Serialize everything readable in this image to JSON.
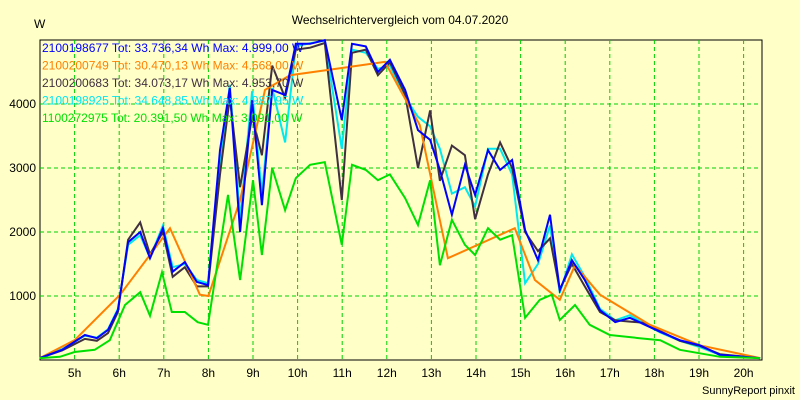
{
  "chart_data": {
    "type": "line",
    "title": "Wechselrichtervergleich vom 04.07.2020",
    "ylabel": "W",
    "xlabel": "",
    "footer": "SunnyReport pinxit",
    "xlim": [
      4.22,
      20.5
    ],
    "ylim": [
      0,
      5000
    ],
    "grid": true,
    "legend_position": "top-left",
    "yticks": [
      1000,
      2000,
      3000,
      4000
    ],
    "xticks": [
      {
        "v": 5,
        "label": "5h"
      },
      {
        "v": 6,
        "label": "6h"
      },
      {
        "v": 7,
        "label": "7h"
      },
      {
        "v": 8,
        "label": "8h"
      },
      {
        "v": 9,
        "label": "9h"
      },
      {
        "v": 10,
        "label": "10h"
      },
      {
        "v": 11,
        "label": "11h"
      },
      {
        "v": 12,
        "label": "12h"
      },
      {
        "v": 13,
        "label": "13h"
      },
      {
        "v": 14,
        "label": "14h"
      },
      {
        "v": 15,
        "label": "15h"
      },
      {
        "v": 16,
        "label": "16h"
      },
      {
        "v": 17,
        "label": "17h"
      },
      {
        "v": 18,
        "label": "18h"
      },
      {
        "v": 19,
        "label": "19h"
      },
      {
        "v": 20,
        "label": "20h"
      }
    ],
    "series": [
      {
        "name": "2100198925",
        "color": "#00e8f0",
        "legend": "2100198925 Tot: 34.648,85 Wh Max: 4.987,95 W",
        "points": [
          [
            4.22,
            30
          ],
          [
            4.72,
            170
          ],
          [
            5.23,
            380
          ],
          [
            5.5,
            350
          ],
          [
            5.75,
            480
          ],
          [
            5.97,
            800
          ],
          [
            6.2,
            1800
          ],
          [
            6.47,
            1950
          ],
          [
            6.69,
            1600
          ],
          [
            6.98,
            2100
          ],
          [
            7.2,
            1450
          ],
          [
            7.47,
            1500
          ],
          [
            7.74,
            1250
          ],
          [
            7.99,
            1200
          ],
          [
            8.26,
            3000
          ],
          [
            8.48,
            4300
          ],
          [
            8.71,
            2200
          ],
          [
            8.98,
            4200
          ],
          [
            9.2,
            2600
          ],
          [
            9.43,
            4250
          ],
          [
            9.72,
            3400
          ],
          [
            9.96,
            4900
          ],
          [
            10.28,
            4950
          ],
          [
            10.61,
            4990
          ],
          [
            10.99,
            3300
          ],
          [
            11.22,
            4850
          ],
          [
            11.53,
            4800
          ],
          [
            11.8,
            4550
          ],
          [
            12.07,
            4600
          ],
          [
            12.41,
            4100
          ],
          [
            12.7,
            3800
          ],
          [
            12.97,
            3650
          ],
          [
            13.19,
            3300
          ],
          [
            13.46,
            2600
          ],
          [
            13.75,
            2700
          ],
          [
            13.98,
            2400
          ],
          [
            14.27,
            3300
          ],
          [
            14.54,
            3300
          ],
          [
            14.81,
            2900
          ],
          [
            15.1,
            1200
          ],
          [
            15.39,
            1500
          ],
          [
            15.66,
            2100
          ],
          [
            15.88,
            1050
          ],
          [
            16.15,
            1650
          ],
          [
            16.44,
            1300
          ],
          [
            16.78,
            800
          ],
          [
            17.12,
            620
          ],
          [
            17.45,
            700
          ],
          [
            17.79,
            560
          ],
          [
            18.13,
            430
          ],
          [
            18.57,
            300
          ],
          [
            19.02,
            200
          ],
          [
            19.47,
            80
          ],
          [
            20.37,
            30
          ]
        ]
      },
      {
        "name": "2100200683",
        "color": "#403040",
        "legend": "2100200683 Tot: 34.073,17 Wh Max: 4.953,70 W",
        "points": [
          [
            4.22,
            30
          ],
          [
            4.72,
            150
          ],
          [
            5.23,
            330
          ],
          [
            5.5,
            300
          ],
          [
            5.75,
            420
          ],
          [
            5.97,
            750
          ],
          [
            6.2,
            1880
          ],
          [
            6.47,
            2150
          ],
          [
            6.69,
            1650
          ],
          [
            6.98,
            2000
          ],
          [
            7.2,
            1300
          ],
          [
            7.47,
            1450
          ],
          [
            7.74,
            1150
          ],
          [
            7.99,
            1150
          ],
          [
            8.26,
            2900
          ],
          [
            8.48,
            4100
          ],
          [
            8.71,
            2700
          ],
          [
            8.98,
            3800
          ],
          [
            9.2,
            3200
          ],
          [
            9.43,
            4600
          ],
          [
            9.72,
            4100
          ],
          [
            9.96,
            4850
          ],
          [
            10.28,
            4880
          ],
          [
            10.61,
            4953
          ],
          [
            10.99,
            2500
          ],
          [
            11.22,
            4800
          ],
          [
            11.53,
            4850
          ],
          [
            11.8,
            4450
          ],
          [
            12.07,
            4650
          ],
          [
            12.41,
            4150
          ],
          [
            12.7,
            3000
          ],
          [
            12.97,
            3900
          ],
          [
            13.19,
            2800
          ],
          [
            13.46,
            3350
          ],
          [
            13.75,
            3200
          ],
          [
            13.98,
            2200
          ],
          [
            14.27,
            2900
          ],
          [
            14.54,
            3400
          ],
          [
            14.81,
            3000
          ],
          [
            15.1,
            2000
          ],
          [
            15.39,
            1700
          ],
          [
            15.66,
            1900
          ],
          [
            15.88,
            1100
          ],
          [
            16.15,
            1500
          ],
          [
            16.44,
            1150
          ],
          [
            16.78,
            750
          ],
          [
            17.12,
            620
          ],
          [
            17.45,
            600
          ],
          [
            17.79,
            580
          ],
          [
            18.13,
            450
          ],
          [
            18.57,
            300
          ],
          [
            19.02,
            220
          ],
          [
            19.47,
            90
          ],
          [
            20.37,
            30
          ]
        ]
      },
      {
        "name": "2100200749",
        "color": "#ff8000",
        "legend": "2100200749 Tot: 30.470,13 Wh Max: 4.668,00 W",
        "points": [
          [
            4.22,
            30
          ],
          [
            5,
            310
          ],
          [
            6.02,
            1020
          ],
          [
            7.14,
            2060
          ],
          [
            7.81,
            1020
          ],
          [
            8.0,
            1000
          ],
          [
            8.71,
            2500
          ],
          [
            9.27,
            4220
          ],
          [
            9.83,
            4450
          ],
          [
            10.95,
            4560
          ],
          [
            11.96,
            4660
          ],
          [
            12.3,
            4220
          ],
          [
            12.74,
            3670
          ],
          [
            13.37,
            1590
          ],
          [
            14.87,
            2060
          ],
          [
            15.32,
            1250
          ],
          [
            15.88,
            940
          ],
          [
            16.22,
            1480
          ],
          [
            16.78,
            1020
          ],
          [
            17.9,
            550
          ],
          [
            19.02,
            230
          ],
          [
            20.37,
            30
          ]
        ]
      },
      {
        "name": "2100198677",
        "color": "#0000ff",
        "legend": "2100198677 Tot: 33.736,34 Wh Max: 4.999,00 W",
        "points": [
          [
            4.22,
            30
          ],
          [
            4.72,
            160
          ],
          [
            5.23,
            390
          ],
          [
            5.5,
            340
          ],
          [
            5.75,
            470
          ],
          [
            5.97,
            780
          ],
          [
            6.2,
            1840
          ],
          [
            6.47,
            2000
          ],
          [
            6.69,
            1590
          ],
          [
            6.98,
            2060
          ],
          [
            7.2,
            1380
          ],
          [
            7.47,
            1530
          ],
          [
            7.74,
            1220
          ],
          [
            7.99,
            1170
          ],
          [
            8.26,
            3280
          ],
          [
            8.48,
            4250
          ],
          [
            8.71,
            2000
          ],
          [
            8.98,
            4060
          ],
          [
            9.2,
            2420
          ],
          [
            9.43,
            4220
          ],
          [
            9.72,
            4140
          ],
          [
            9.96,
            4940
          ],
          [
            10.28,
            4940
          ],
          [
            10.61,
            4999
          ],
          [
            10.99,
            3750
          ],
          [
            11.22,
            4940
          ],
          [
            11.53,
            4900
          ],
          [
            11.8,
            4500
          ],
          [
            12.07,
            4690
          ],
          [
            12.41,
            4220
          ],
          [
            12.7,
            3590
          ],
          [
            12.97,
            3440
          ],
          [
            13.19,
            2970
          ],
          [
            13.46,
            2270
          ],
          [
            13.75,
            3050
          ],
          [
            13.98,
            2580
          ],
          [
            14.27,
            3280
          ],
          [
            14.54,
            2970
          ],
          [
            14.81,
            3125
          ],
          [
            15.1,
            2030
          ],
          [
            15.39,
            1560
          ],
          [
            15.66,
            2270
          ],
          [
            15.88,
            1090
          ],
          [
            16.15,
            1560
          ],
          [
            16.44,
            1250
          ],
          [
            16.78,
            780
          ],
          [
            17.12,
            590
          ],
          [
            17.45,
            660
          ],
          [
            17.79,
            550
          ],
          [
            18.13,
            440
          ],
          [
            18.57,
            310
          ],
          [
            19.02,
            230
          ],
          [
            19.47,
            80
          ],
          [
            20.37,
            30
          ]
        ]
      },
      {
        "name": "1100272975",
        "color": "#00e000",
        "legend": "1100272975 Tot: 20.391,50 Wh Max: 3.091,00 W",
        "points": [
          [
            4.22,
            30
          ],
          [
            4.67,
            50
          ],
          [
            5,
            125
          ],
          [
            5.45,
            160
          ],
          [
            5.79,
            310
          ],
          [
            6.13,
            860
          ],
          [
            6.47,
            1060
          ],
          [
            6.69,
            690
          ],
          [
            6.96,
            1370
          ],
          [
            7.18,
            750
          ],
          [
            7.47,
            750
          ],
          [
            7.76,
            590
          ],
          [
            7.99,
            550
          ],
          [
            8.44,
            2580
          ],
          [
            8.71,
            1250
          ],
          [
            9,
            2810
          ],
          [
            9.2,
            1640
          ],
          [
            9.43,
            3000
          ],
          [
            9.72,
            2340
          ],
          [
            9.96,
            2840
          ],
          [
            10.28,
            3050
          ],
          [
            10.61,
            3091
          ],
          [
            10.99,
            1800
          ],
          [
            11.22,
            3050
          ],
          [
            11.53,
            2970
          ],
          [
            11.8,
            2810
          ],
          [
            12.07,
            2900
          ],
          [
            12.41,
            2530
          ],
          [
            12.7,
            2110
          ],
          [
            12.97,
            2810
          ],
          [
            13.19,
            1480
          ],
          [
            13.46,
            2190
          ],
          [
            13.75,
            1800
          ],
          [
            13.98,
            1640
          ],
          [
            14.27,
            2060
          ],
          [
            14.54,
            1880
          ],
          [
            14.81,
            1950
          ],
          [
            15.1,
            660
          ],
          [
            15.43,
            940
          ],
          [
            15.7,
            1020
          ],
          [
            15.88,
            625
          ],
          [
            16.22,
            860
          ],
          [
            16.55,
            550
          ],
          [
            17.0,
            390
          ],
          [
            17.67,
            340
          ],
          [
            18.13,
            310
          ],
          [
            18.57,
            160
          ],
          [
            19.47,
            50
          ],
          [
            20.37,
            30
          ]
        ]
      }
    ]
  }
}
